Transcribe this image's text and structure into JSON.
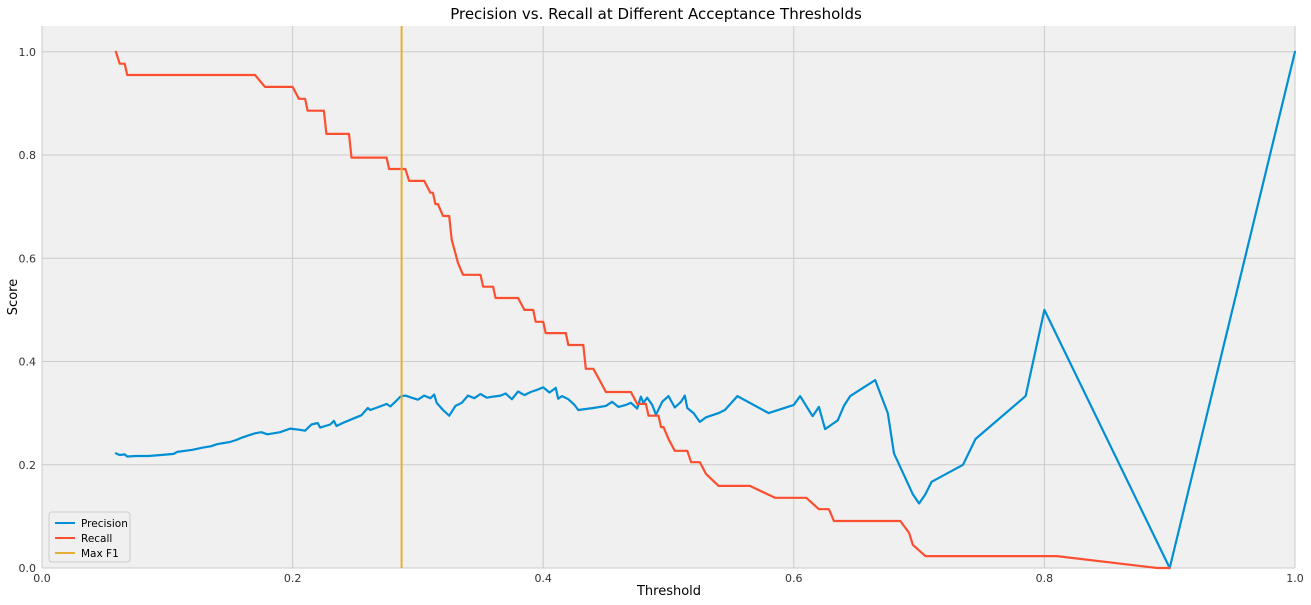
{
  "chart_data": {
    "type": "line",
    "title": "Precision vs. Recall at Different Acceptance Thresholds",
    "xlabel": "Threshold",
    "ylabel": "Score",
    "xlim": [
      0.0,
      1.0
    ],
    "ylim": [
      0.0,
      1.05
    ],
    "xticks": [
      "0.0",
      "0.2",
      "0.4",
      "0.6",
      "0.8",
      "1.0"
    ],
    "yticks": [
      "0.0",
      "0.2",
      "0.4",
      "0.6",
      "0.8",
      "1.0"
    ],
    "grid": true,
    "legend_position": "lower-left",
    "colors": {
      "precision": "#008fd5",
      "recall": "#fc4f30",
      "max_f1": "#e5ae38",
      "plot_background": "#f0f0f0",
      "grid": "#cbcbcb"
    },
    "series": [
      {
        "name": "Precision",
        "color": "#008fd5",
        "points": [
          [
            0.059,
            0.222
          ],
          [
            0.062,
            0.219
          ],
          [
            0.066,
            0.22
          ],
          [
            0.068,
            0.216
          ],
          [
            0.075,
            0.217
          ],
          [
            0.085,
            0.217
          ],
          [
            0.095,
            0.219
          ],
          [
            0.105,
            0.221
          ],
          [
            0.108,
            0.225
          ],
          [
            0.12,
            0.229
          ],
          [
            0.128,
            0.233
          ],
          [
            0.135,
            0.236
          ],
          [
            0.14,
            0.24
          ],
          [
            0.15,
            0.244
          ],
          [
            0.155,
            0.248
          ],
          [
            0.16,
            0.253
          ],
          [
            0.165,
            0.257
          ],
          [
            0.17,
            0.261
          ],
          [
            0.175,
            0.263
          ],
          [
            0.18,
            0.259
          ],
          [
            0.19,
            0.263
          ],
          [
            0.198,
            0.27
          ],
          [
            0.205,
            0.268
          ],
          [
            0.21,
            0.266
          ],
          [
            0.215,
            0.278
          ],
          [
            0.22,
            0.281
          ],
          [
            0.222,
            0.272
          ],
          [
            0.23,
            0.278
          ],
          [
            0.233,
            0.285
          ],
          [
            0.235,
            0.275
          ],
          [
            0.24,
            0.281
          ],
          [
            0.248,
            0.289
          ],
          [
            0.255,
            0.296
          ],
          [
            0.26,
            0.31
          ],
          [
            0.262,
            0.306
          ],
          [
            0.27,
            0.313
          ],
          [
            0.275,
            0.318
          ],
          [
            0.278,
            0.313
          ],
          [
            0.282,
            0.322
          ],
          [
            0.286,
            0.332
          ],
          [
            0.29,
            0.334
          ],
          [
            0.295,
            0.33
          ],
          [
            0.3,
            0.326
          ],
          [
            0.305,
            0.334
          ],
          [
            0.31,
            0.329
          ],
          [
            0.313,
            0.336
          ],
          [
            0.315,
            0.32
          ],
          [
            0.32,
            0.306
          ],
          [
            0.325,
            0.295
          ],
          [
            0.33,
            0.314
          ],
          [
            0.335,
            0.32
          ],
          [
            0.34,
            0.334
          ],
          [
            0.345,
            0.329
          ],
          [
            0.35,
            0.337
          ],
          [
            0.355,
            0.33
          ],
          [
            0.36,
            0.332
          ],
          [
            0.366,
            0.334
          ],
          [
            0.37,
            0.338
          ],
          [
            0.375,
            0.327
          ],
          [
            0.38,
            0.342
          ],
          [
            0.385,
            0.335
          ],
          [
            0.39,
            0.341
          ],
          [
            0.395,
            0.345
          ],
          [
            0.4,
            0.35
          ],
          [
            0.405,
            0.34
          ],
          [
            0.408,
            0.345
          ],
          [
            0.41,
            0.349
          ],
          [
            0.412,
            0.328
          ],
          [
            0.415,
            0.333
          ],
          [
            0.42,
            0.327
          ],
          [
            0.425,
            0.316
          ],
          [
            0.428,
            0.306
          ],
          [
            0.44,
            0.31
          ],
          [
            0.45,
            0.314
          ],
          [
            0.455,
            0.322
          ],
          [
            0.46,
            0.312
          ],
          [
            0.466,
            0.316
          ],
          [
            0.47,
            0.32
          ],
          [
            0.475,
            0.309
          ],
          [
            0.478,
            0.332
          ],
          [
            0.48,
            0.32
          ],
          [
            0.483,
            0.33
          ],
          [
            0.487,
            0.316
          ],
          [
            0.49,
            0.297
          ],
          [
            0.495,
            0.322
          ],
          [
            0.5,
            0.333
          ],
          [
            0.505,
            0.311
          ],
          [
            0.51,
            0.322
          ],
          [
            0.513,
            0.334
          ],
          [
            0.515,
            0.31
          ],
          [
            0.52,
            0.3
          ],
          [
            0.525,
            0.283
          ],
          [
            0.53,
            0.292
          ],
          [
            0.54,
            0.3
          ],
          [
            0.545,
            0.306
          ],
          [
            0.555,
            0.333
          ],
          [
            0.58,
            0.3
          ],
          [
            0.6,
            0.316
          ],
          [
            0.605,
            0.333
          ],
          [
            0.615,
            0.294
          ],
          [
            0.62,
            0.312
          ],
          [
            0.625,
            0.269
          ],
          [
            0.635,
            0.286
          ],
          [
            0.64,
            0.314
          ],
          [
            0.645,
            0.333
          ],
          [
            0.665,
            0.364
          ],
          [
            0.675,
            0.3
          ],
          [
            0.68,
            0.222
          ],
          [
            0.695,
            0.143
          ],
          [
            0.7,
            0.125
          ],
          [
            0.705,
            0.143
          ],
          [
            0.71,
            0.167
          ],
          [
            0.735,
            0.2
          ],
          [
            0.745,
            0.25
          ],
          [
            0.785,
            0.333
          ],
          [
            0.8,
            0.5
          ],
          [
            0.9,
            0.0
          ],
          [
            1.0,
            1.0
          ]
        ]
      },
      {
        "name": "Recall",
        "color": "#fc4f30",
        "points": [
          [
            0.059,
            1.0
          ],
          [
            0.062,
            0.977
          ],
          [
            0.066,
            0.977
          ],
          [
            0.068,
            0.955
          ],
          [
            0.17,
            0.955
          ],
          [
            0.178,
            0.932
          ],
          [
            0.2,
            0.932
          ],
          [
            0.205,
            0.909
          ],
          [
            0.21,
            0.909
          ],
          [
            0.212,
            0.886
          ],
          [
            0.225,
            0.886
          ],
          [
            0.227,
            0.841
          ],
          [
            0.245,
            0.841
          ],
          [
            0.247,
            0.795
          ],
          [
            0.275,
            0.795
          ],
          [
            0.277,
            0.773
          ],
          [
            0.29,
            0.773
          ],
          [
            0.293,
            0.75
          ],
          [
            0.305,
            0.75
          ],
          [
            0.31,
            0.727
          ],
          [
            0.312,
            0.727
          ],
          [
            0.314,
            0.705
          ],
          [
            0.316,
            0.705
          ],
          [
            0.32,
            0.682
          ],
          [
            0.325,
            0.682
          ],
          [
            0.327,
            0.636
          ],
          [
            0.332,
            0.591
          ],
          [
            0.336,
            0.568
          ],
          [
            0.35,
            0.568
          ],
          [
            0.352,
            0.545
          ],
          [
            0.36,
            0.545
          ],
          [
            0.362,
            0.523
          ],
          [
            0.38,
            0.523
          ],
          [
            0.385,
            0.5
          ],
          [
            0.392,
            0.5
          ],
          [
            0.394,
            0.477
          ],
          [
            0.4,
            0.477
          ],
          [
            0.402,
            0.455
          ],
          [
            0.418,
            0.455
          ],
          [
            0.42,
            0.432
          ],
          [
            0.432,
            0.432
          ],
          [
            0.434,
            0.386
          ],
          [
            0.44,
            0.386
          ],
          [
            0.445,
            0.364
          ],
          [
            0.45,
            0.341
          ],
          [
            0.468,
            0.341
          ],
          [
            0.47,
            0.341
          ],
          [
            0.475,
            0.318
          ],
          [
            0.482,
            0.318
          ],
          [
            0.484,
            0.295
          ],
          [
            0.492,
            0.295
          ],
          [
            0.494,
            0.273
          ],
          [
            0.496,
            0.273
          ],
          [
            0.5,
            0.25
          ],
          [
            0.505,
            0.227
          ],
          [
            0.515,
            0.227
          ],
          [
            0.518,
            0.205
          ],
          [
            0.525,
            0.205
          ],
          [
            0.53,
            0.182
          ],
          [
            0.54,
            0.159
          ],
          [
            0.565,
            0.159
          ],
          [
            0.585,
            0.136
          ],
          [
            0.61,
            0.136
          ],
          [
            0.62,
            0.114
          ],
          [
            0.628,
            0.114
          ],
          [
            0.632,
            0.091
          ],
          [
            0.685,
            0.091
          ],
          [
            0.692,
            0.068
          ],
          [
            0.695,
            0.045
          ],
          [
            0.705,
            0.023
          ],
          [
            0.78,
            0.023
          ],
          [
            0.81,
            0.023
          ],
          [
            0.89,
            0.0
          ],
          [
            0.9,
            0.0
          ]
        ]
      }
    ],
    "vlines": [
      {
        "name": "Max F1",
        "color": "#e5ae38",
        "x": 0.287
      }
    ],
    "legend": [
      "Precision",
      "Recall",
      "Max F1"
    ]
  }
}
